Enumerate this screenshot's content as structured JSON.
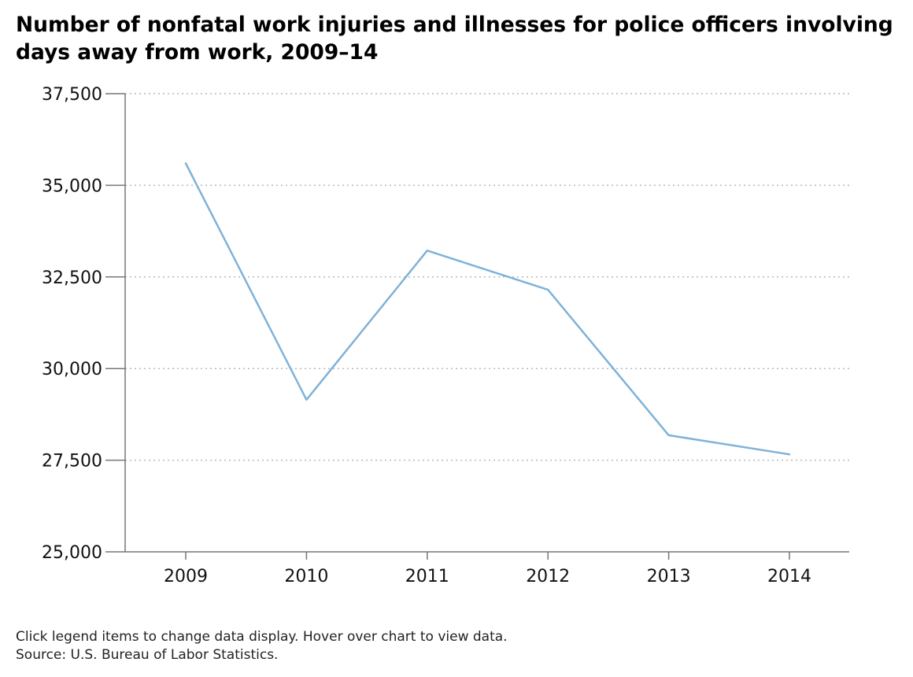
{
  "chart_data": {
    "type": "line",
    "title": "Number of nonfatal work injuries and illnesses for police officers involving\ndays away from work, 2009–14",
    "xlabel": "",
    "ylabel": "",
    "categories": [
      "2009",
      "2010",
      "2011",
      "2012",
      "2013",
      "2014"
    ],
    "series": [
      {
        "values": [
          35600,
          29150,
          33220,
          32150,
          28180,
          27660
        ],
        "color": "#7fb2d9"
      }
    ],
    "ylim": [
      25000,
      37500
    ],
    "yticks": [
      25000,
      27500,
      30000,
      32500,
      35000,
      37500
    ],
    "ytick_labels": [
      "25,000",
      "27,500",
      "30,000",
      "32,500",
      "35,000",
      "37,500"
    ],
    "grid": "horizontal-dotted",
    "legend": "none"
  },
  "footer": {
    "note": "Click legend items to change data display. Hover over chart to view data.",
    "source": "Source: U.S. Bureau of Labor Statistics."
  }
}
